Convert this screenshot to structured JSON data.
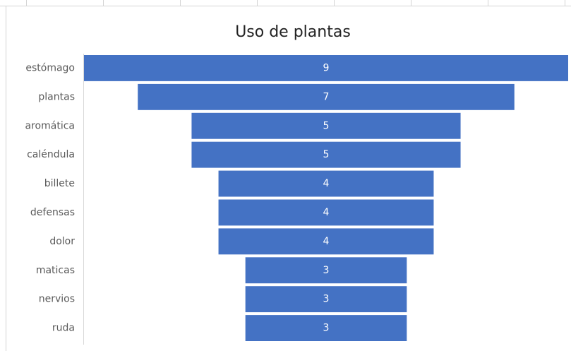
{
  "chart_data": {
    "type": "funnel",
    "title": "Uso de plantas",
    "categories": [
      "estómago",
      "plantas",
      "aromática",
      "caléndula",
      "billete",
      "defensas",
      "dolor",
      "maticas",
      "nervios",
      "ruda"
    ],
    "values": [
      9,
      7,
      5,
      5,
      4,
      4,
      4,
      3,
      3,
      3
    ],
    "color": "#4472c4"
  }
}
